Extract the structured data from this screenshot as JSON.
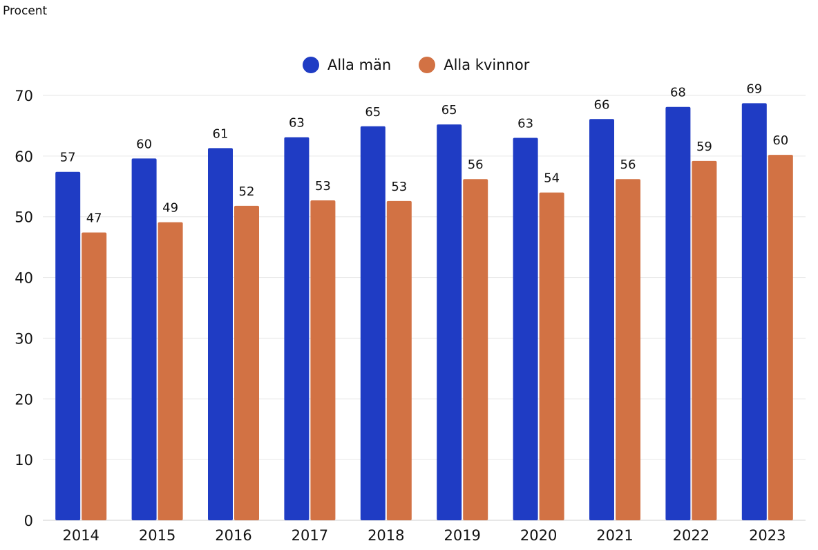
{
  "subtitle": "Procent",
  "chart_data": {
    "type": "bar",
    "title": "",
    "xlabel": "",
    "ylabel": "Procent",
    "categories": [
      "2014",
      "2015",
      "2016",
      "2017",
      "2018",
      "2019",
      "2020",
      "2021",
      "2022",
      "2023"
    ],
    "series": [
      {
        "name": "Alla män",
        "color": "#1f3cc4",
        "values": [
          57.4,
          59.6,
          61.3,
          63.1,
          64.9,
          65.2,
          63.0,
          66.1,
          68.1,
          68.7
        ],
        "labels": [
          "57",
          "60",
          "61",
          "63",
          "65",
          "65",
          "63",
          "66",
          "68",
          "69"
        ]
      },
      {
        "name": "Alla kvinnor",
        "color": "#d27244",
        "values": [
          47.4,
          49.1,
          51.8,
          52.7,
          52.6,
          56.2,
          54.0,
          56.2,
          59.2,
          60.2
        ],
        "labels": [
          "47",
          "49",
          "52",
          "53",
          "53",
          "56",
          "54",
          "56",
          "59",
          "60"
        ]
      }
    ],
    "ylim": [
      0,
      70
    ],
    "yticks": [
      0,
      10,
      20,
      30,
      40,
      50,
      60,
      70
    ],
    "grid": true,
    "legend": "top-center"
  }
}
